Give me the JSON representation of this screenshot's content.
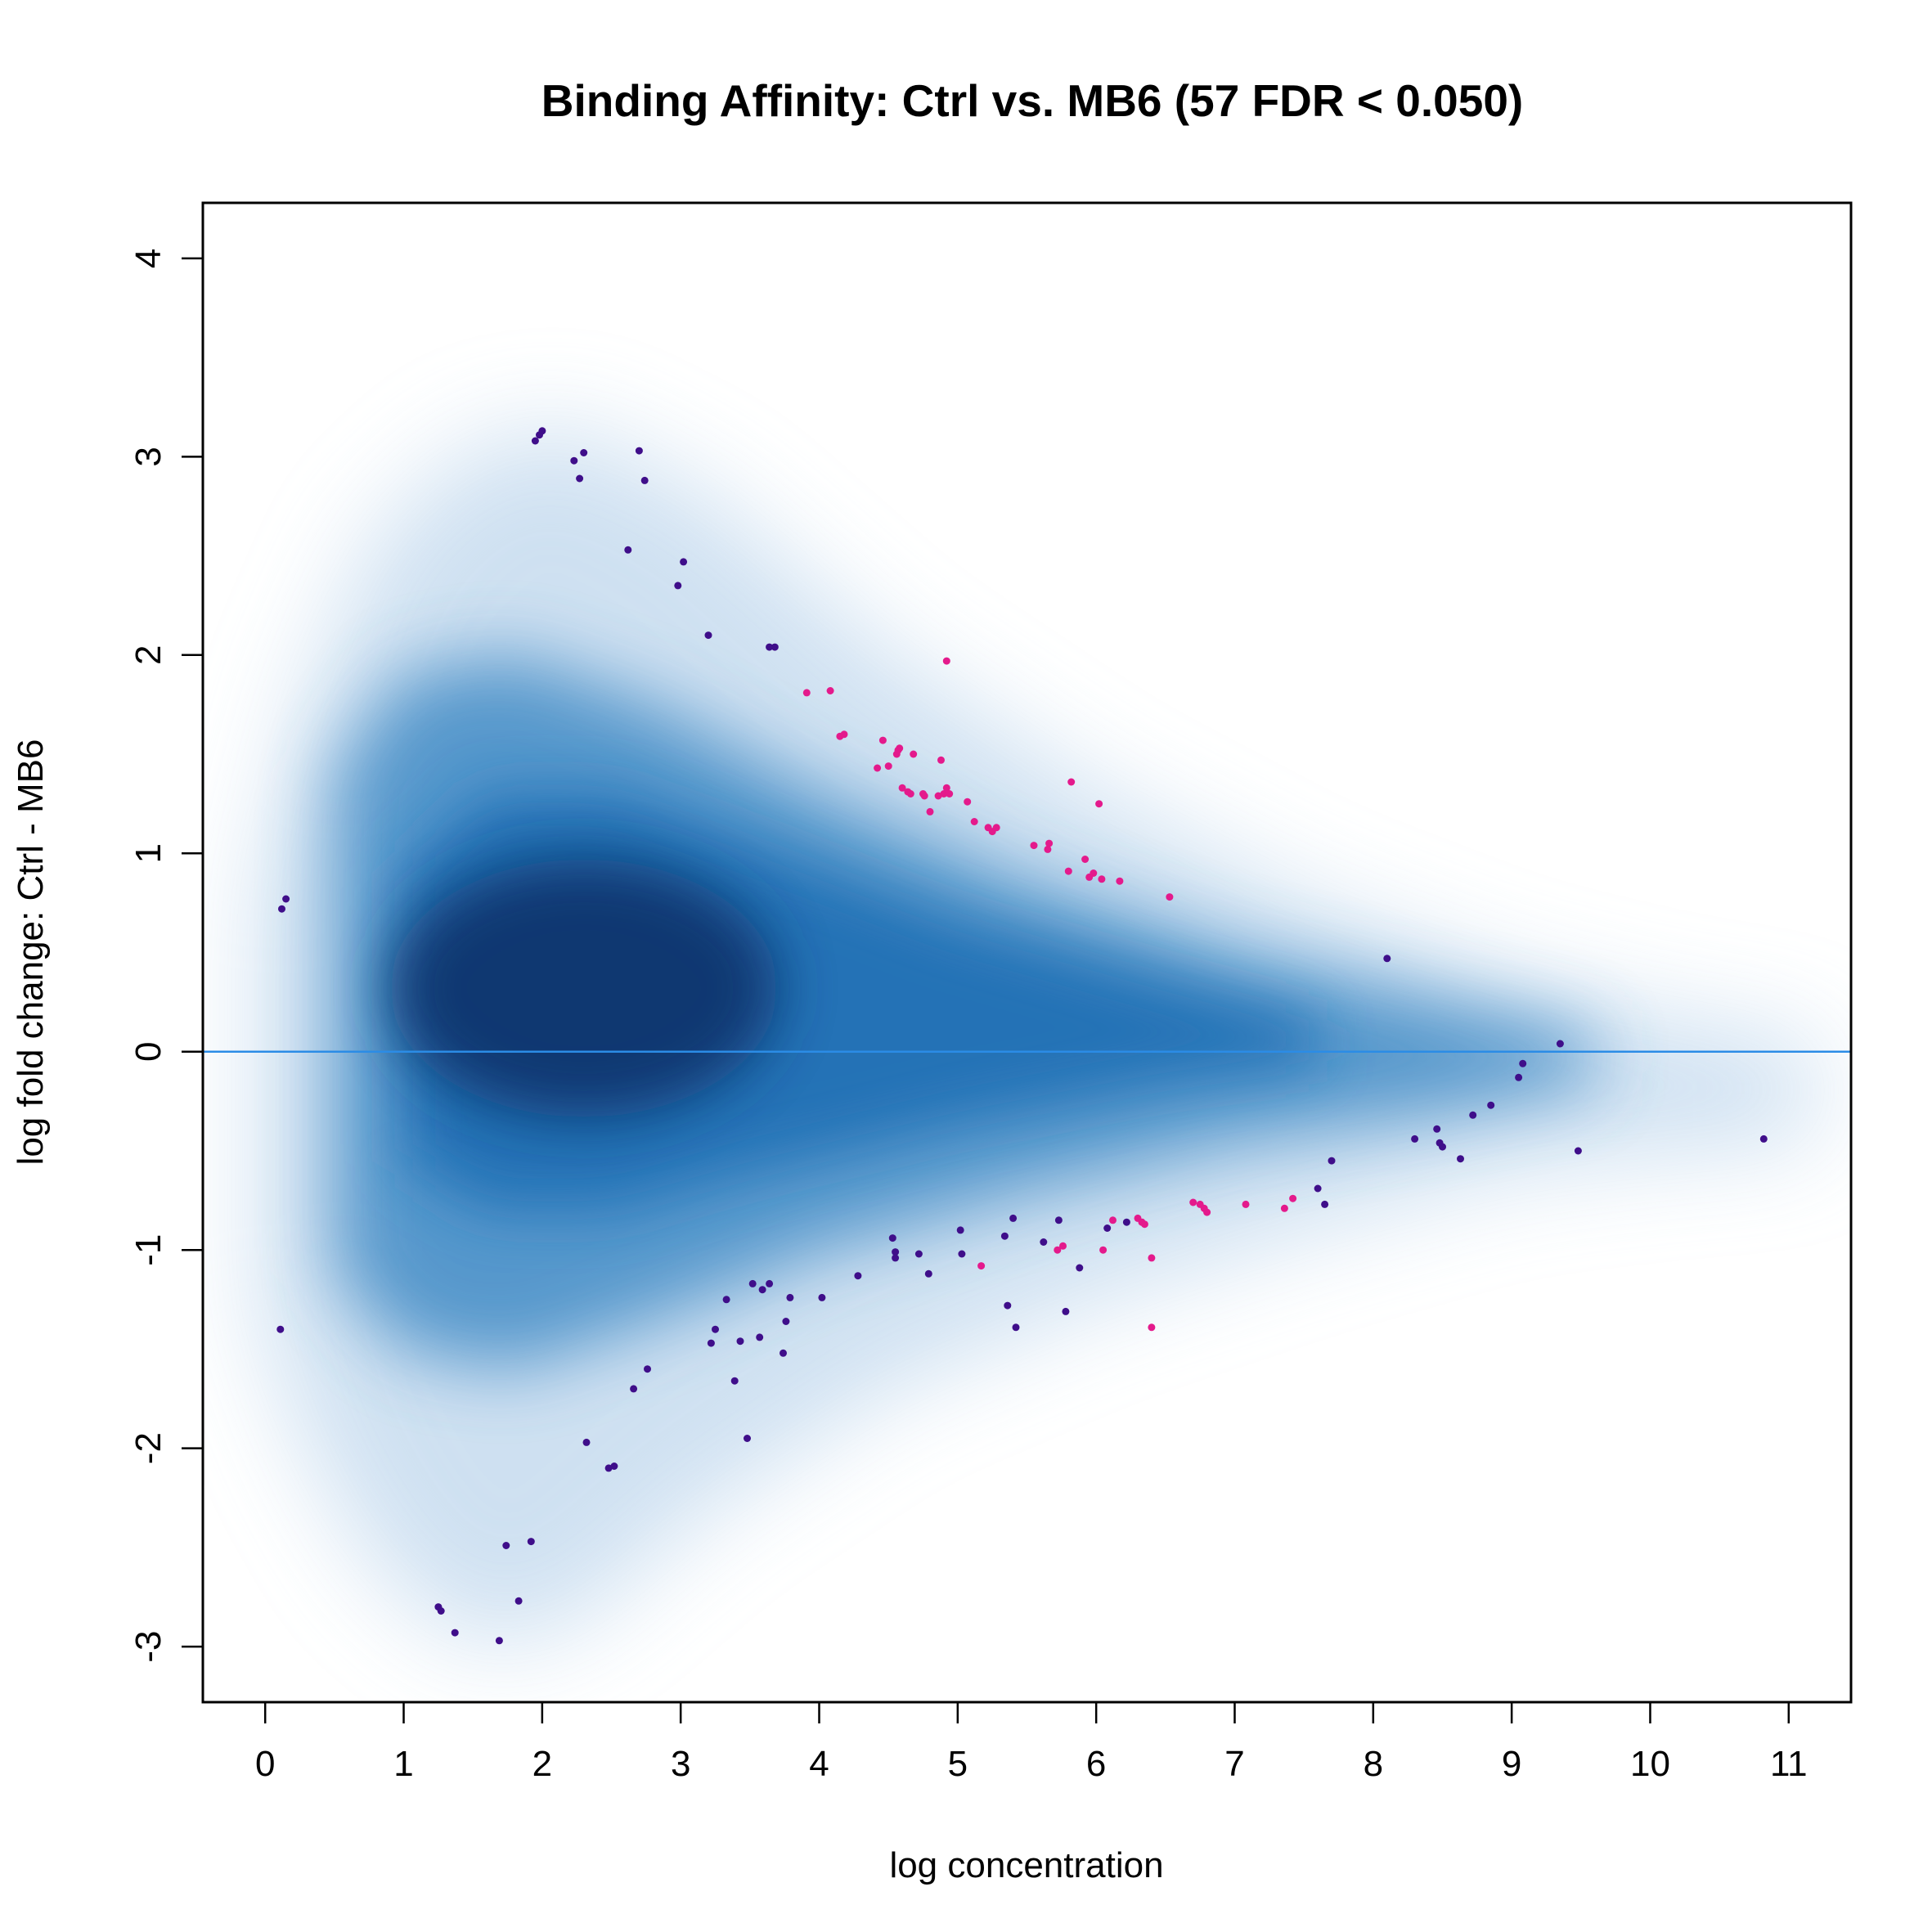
{
  "chart_data": {
    "type": "scatter",
    "title": "Binding Affinity: Ctrl vs. MB6 (57 FDR < 0.050)",
    "xlabel": "log concentration",
    "ylabel": "log fold change: Ctrl - MB6",
    "xlim": [
      -0.45,
      11.45
    ],
    "ylim": [
      -3.28,
      4.28
    ],
    "xticks": [
      "0",
      "1",
      "2",
      "3",
      "4",
      "5",
      "6",
      "7",
      "8",
      "9",
      "10",
      "11"
    ],
    "yticks": [
      "-3",
      "-2",
      "-1",
      "0",
      "1",
      "2",
      "3",
      "4"
    ],
    "reference_line": {
      "y": 0,
      "color": "#2b8ce6"
    },
    "background": "smoothed density of all sites (blue)",
    "colors": {
      "density_dark": "#08306b",
      "density_mid": "#2171b5",
      "density_light": "#c6dbef",
      "points": "#3f0e8a",
      "significant": "#e41a8c"
    },
    "series": [
      {
        "name": "",
        "color": "#3f0e8a",
        "points": [
          [
            0.12,
            0.72
          ],
          [
            0.15,
            0.77
          ],
          [
            0.11,
            -1.4
          ],
          [
            1.95,
            3.08
          ],
          [
            1.98,
            3.11
          ],
          [
            2.0,
            3.13
          ],
          [
            2.23,
            2.98
          ],
          [
            2.3,
            3.02
          ],
          [
            2.27,
            2.89
          ],
          [
            2.7,
            3.03
          ],
          [
            2.74,
            2.88
          ],
          [
            2.62,
            2.53
          ],
          [
            3.02,
            2.47
          ],
          [
            2.98,
            2.35
          ],
          [
            3.2,
            2.1
          ],
          [
            3.64,
            2.04
          ],
          [
            3.68,
            2.04
          ],
          [
            8.1,
            0.47
          ],
          [
            9.35,
            0.04
          ],
          [
            9.08,
            -0.06
          ],
          [
            9.05,
            -0.13
          ],
          [
            8.85,
            -0.27
          ],
          [
            8.72,
            -0.32
          ],
          [
            8.3,
            -0.44
          ],
          [
            8.46,
            -0.39
          ],
          [
            8.48,
            -0.46
          ],
          [
            8.5,
            -0.48
          ],
          [
            8.63,
            -0.54
          ],
          [
            9.48,
            -0.5
          ],
          [
            10.82,
            -0.44
          ],
          [
            7.7,
            -0.55
          ],
          [
            7.6,
            -0.69
          ],
          [
            7.65,
            -0.77
          ],
          [
            6.22,
            -0.86
          ],
          [
            6.08,
            -0.89
          ],
          [
            5.88,
            -1.09
          ],
          [
            5.78,
            -1.31
          ],
          [
            5.73,
            -0.85
          ],
          [
            5.62,
            -0.96
          ],
          [
            5.4,
            -0.84
          ],
          [
            5.34,
            -0.93
          ],
          [
            5.36,
            -1.28
          ],
          [
            5.42,
            -1.39
          ],
          [
            5.02,
            -0.9
          ],
          [
            5.03,
            -1.02
          ],
          [
            4.55,
            -1.01
          ],
          [
            4.55,
            -1.04
          ],
          [
            4.53,
            -0.94
          ],
          [
            4.72,
            -1.02
          ],
          [
            4.79,
            -1.12
          ],
          [
            4.28,
            -1.13
          ],
          [
            4.02,
            -1.24
          ],
          [
            3.79,
            -1.24
          ],
          [
            3.76,
            -1.36
          ],
          [
            3.74,
            -1.52
          ],
          [
            3.64,
            -1.17
          ],
          [
            3.59,
            -1.2
          ],
          [
            3.52,
            -1.17
          ],
          [
            3.57,
            -1.44
          ],
          [
            3.43,
            -1.46
          ],
          [
            3.39,
            -1.66
          ],
          [
            3.48,
            -1.95
          ],
          [
            3.33,
            -1.25
          ],
          [
            3.25,
            -1.4
          ],
          [
            3.22,
            -1.47
          ],
          [
            2.76,
            -1.6
          ],
          [
            2.66,
            -1.7
          ],
          [
            2.32,
            -1.97
          ],
          [
            2.48,
            -2.1
          ],
          [
            2.52,
            -2.09
          ],
          [
            1.92,
            -2.47
          ],
          [
            1.74,
            -2.49
          ],
          [
            1.83,
            -2.77
          ],
          [
            1.69,
            -2.97
          ],
          [
            1.25,
            -2.8
          ],
          [
            1.27,
            -2.82
          ],
          [
            1.37,
            -2.93
          ]
        ]
      },
      {
        "name": "",
        "color": "#e41a8c",
        "points": [
          [
            3.91,
            1.81
          ],
          [
            4.08,
            1.82
          ],
          [
            4.15,
            1.59
          ],
          [
            4.18,
            1.6
          ],
          [
            4.46,
            1.57
          ],
          [
            4.42,
            1.43
          ],
          [
            4.5,
            1.44
          ],
          [
            4.57,
            1.52
          ],
          [
            4.58,
            1.53
          ],
          [
            4.56,
            1.5
          ],
          [
            4.68,
            1.5
          ],
          [
            4.88,
            1.47
          ],
          [
            4.92,
            1.97
          ],
          [
            4.6,
            1.33
          ],
          [
            4.64,
            1.31
          ],
          [
            4.66,
            1.3
          ],
          [
            4.75,
            1.3
          ],
          [
            4.76,
            1.29
          ],
          [
            4.8,
            1.21
          ],
          [
            4.86,
            1.29
          ],
          [
            4.9,
            1.3
          ],
          [
            4.92,
            1.33
          ],
          [
            4.94,
            1.3
          ],
          [
            5.07,
            1.26
          ],
          [
            5.12,
            1.16
          ],
          [
            5.22,
            1.13
          ],
          [
            5.25,
            1.11
          ],
          [
            5.28,
            1.13
          ],
          [
            5.55,
            1.04
          ],
          [
            5.65,
            1.02
          ],
          [
            5.66,
            1.05
          ],
          [
            5.82,
            1.36
          ],
          [
            6.02,
            1.25
          ],
          [
            5.92,
            0.97
          ],
          [
            5.8,
            0.91
          ],
          [
            5.95,
            0.88
          ],
          [
            5.98,
            0.9
          ],
          [
            6.04,
            0.87
          ],
          [
            6.17,
            0.86
          ],
          [
            6.53,
            0.78
          ],
          [
            6.7,
            -0.76
          ],
          [
            6.75,
            -0.77
          ],
          [
            6.78,
            -0.79
          ],
          [
            6.8,
            -0.81
          ],
          [
            7.08,
            -0.77
          ],
          [
            7.36,
            -0.79
          ],
          [
            7.42,
            -0.74
          ],
          [
            6.12,
            -0.85
          ],
          [
            6.3,
            -0.84
          ],
          [
            6.33,
            -0.86
          ],
          [
            6.35,
            -0.87
          ],
          [
            6.4,
            -1.04
          ],
          [
            6.4,
            -1.39
          ],
          [
            6.05,
            -1.0
          ],
          [
            5.72,
            -1.0
          ],
          [
            5.76,
            -0.98
          ],
          [
            5.17,
            -1.08
          ]
        ]
      }
    ]
  }
}
